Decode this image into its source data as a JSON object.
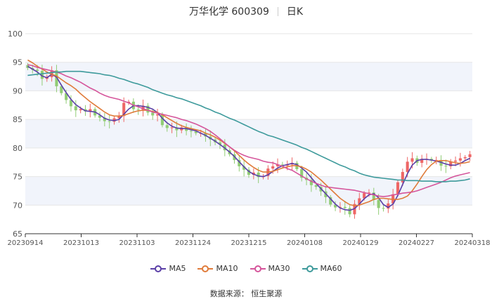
{
  "header": {
    "title": "万华化学 600309",
    "period": "日K"
  },
  "source_text": "数据来源： 恒生聚源",
  "colors": {
    "up": "#ee6666",
    "down": "#91cc75",
    "band": "#f1f4fb",
    "grid": "#e6e6e6",
    "axis": "#333333",
    "text": "#555555"
  },
  "chart_data": {
    "type": "candlestick",
    "ylim": [
      65,
      100
    ],
    "yticks": [
      65,
      70,
      75,
      80,
      85,
      90,
      95,
      100
    ],
    "grid": true,
    "legend_position": "bottom",
    "x_tick_labels": [
      "20230914",
      "20231013",
      "20231103",
      "20231124",
      "20231215",
      "20240108",
      "20240129",
      "20240227",
      "20240318"
    ],
    "series": [
      {
        "name": "MA5",
        "color": "#5b3fa7",
        "values": [
          94.3,
          93.8,
          93.3,
          92.6,
          92.3,
          92.9,
          92.4,
          91.0,
          89.7,
          88.5,
          87.6,
          87.0,
          86.5,
          86.4,
          86.3,
          85.8,
          85.2,
          84.9,
          84.8,
          85.0,
          85.9,
          86.8,
          87.4,
          87.4,
          87.3,
          87.1,
          86.8,
          86.2,
          85.2,
          84.4,
          83.8,
          83.5,
          83.4,
          83.4,
          83.2,
          83.0,
          82.6,
          82.2,
          81.7,
          81.2,
          80.6,
          80.0,
          79.3,
          78.5,
          77.6,
          76.7,
          75.9,
          75.4,
          75.1,
          75.0,
          75.3,
          75.9,
          76.5,
          76.9,
          77.1,
          77.3,
          77.1,
          76.5,
          75.8,
          74.8,
          73.8,
          72.9,
          72.0,
          71.1,
          70.2,
          69.5,
          69.2,
          69.1,
          69.4,
          70.2,
          71.1,
          71.8,
          72.0,
          71.3,
          70.1,
          69.6,
          70.2,
          71.7,
          73.6,
          75.5,
          77.0,
          77.8,
          78.0,
          78.0,
          77.9,
          77.7,
          77.5,
          77.2,
          77.0,
          77.0,
          77.3,
          77.8,
          78.2
        ]
      },
      {
        "name": "MA10",
        "color": "#e07b3a",
        "values": [
          95.4,
          94.9,
          94.3,
          93.8,
          93.3,
          92.9,
          92.6,
          92.0,
          91.4,
          90.9,
          90.3,
          89.5,
          88.8,
          88.1,
          87.5,
          86.9,
          86.3,
          85.8,
          85.6,
          85.6,
          85.7,
          86.0,
          86.3,
          86.5,
          86.6,
          86.6,
          86.4,
          86.2,
          85.8,
          85.3,
          84.8,
          84.3,
          83.9,
          83.6,
          83.4,
          83.2,
          83.0,
          82.6,
          82.3,
          81.9,
          81.4,
          80.8,
          80.2,
          79.5,
          78.7,
          77.9,
          77.2,
          76.6,
          76.1,
          75.8,
          75.8,
          75.9,
          76.2,
          76.5,
          76.7,
          76.9,
          76.9,
          76.7,
          76.3,
          75.8,
          75.1,
          74.4,
          73.6,
          72.8,
          72.0,
          71.2,
          70.6,
          70.1,
          69.9,
          70.0,
          70.3,
          70.6,
          71.0,
          71.2,
          71.2,
          71.1,
          71.0,
          71.0,
          71.2,
          71.6,
          72.5,
          73.7,
          75.0,
          76.2,
          77.1,
          77.7,
          77.8,
          77.8,
          77.6,
          77.4,
          77.3,
          77.4,
          77.6
        ]
      },
      {
        "name": "MA30",
        "color": "#d5559b",
        "values": [
          94.6,
          94.4,
          94.1,
          93.9,
          93.7,
          93.5,
          93.3,
          93.0,
          92.6,
          92.3,
          91.9,
          91.5,
          91.0,
          90.5,
          90.1,
          89.6,
          89.2,
          88.9,
          88.7,
          88.5,
          88.2,
          87.9,
          87.5,
          87.2,
          86.9,
          86.6,
          86.3,
          86.1,
          85.9,
          85.7,
          85.5,
          85.3,
          85.0,
          84.8,
          84.5,
          84.2,
          83.8,
          83.4,
          82.9,
          82.3,
          81.6,
          80.9,
          80.2,
          79.6,
          79.1,
          78.7,
          78.4,
          78.2,
          78.0,
          77.7,
          77.5,
          77.4,
          77.1,
          76.8,
          76.4,
          76.1,
          75.6,
          75.1,
          74.6,
          74.2,
          73.8,
          73.5,
          73.2,
          73.1,
          73.0,
          72.9,
          72.8,
          72.7,
          72.6,
          72.4,
          72.2,
          72.0,
          71.8,
          71.6,
          71.5,
          71.6,
          71.8,
          71.9,
          72.1,
          72.2,
          72.3,
          72.5,
          72.8,
          73.1,
          73.4,
          73.7,
          74.0,
          74.4,
          74.8,
          75.1,
          75.3,
          75.5,
          75.7
        ]
      },
      {
        "name": "MA60",
        "color": "#3d9a9b",
        "values": [
          92.7,
          92.8,
          92.9,
          93.0,
          93.1,
          93.2,
          93.3,
          93.3,
          93.4,
          93.4,
          93.4,
          93.4,
          93.3,
          93.2,
          93.1,
          93.0,
          92.8,
          92.7,
          92.5,
          92.2,
          92.0,
          91.7,
          91.4,
          91.2,
          90.9,
          90.6,
          90.2,
          89.9,
          89.6,
          89.3,
          89.1,
          88.8,
          88.6,
          88.3,
          88.0,
          87.7,
          87.4,
          87.0,
          86.7,
          86.3,
          86.0,
          85.6,
          85.2,
          84.9,
          84.5,
          84.1,
          83.7,
          83.3,
          82.9,
          82.6,
          82.2,
          82.0,
          81.7,
          81.4,
          81.1,
          80.8,
          80.5,
          80.1,
          79.8,
          79.4,
          79.0,
          78.6,
          78.2,
          77.8,
          77.4,
          77.0,
          76.7,
          76.3,
          76.0,
          75.6,
          75.3,
          75.1,
          74.9,
          74.8,
          74.7,
          74.6,
          74.5,
          74.4,
          74.4,
          74.3,
          74.3,
          74.3,
          74.2,
          74.2,
          74.2,
          74.1,
          74.1,
          74.1,
          74.2,
          74.2,
          74.3,
          74.4,
          74.6
        ]
      }
    ],
    "closes": [
      94.0,
      93.7,
      93.5,
      92.1,
      92.4,
      93.6,
      90.8,
      89.6,
      88.4,
      87.3,
      86.6,
      86.8,
      86.4,
      86.8,
      85.7,
      85.3,
      84.7,
      84.6,
      85.2,
      85.6,
      87.9,
      88.1,
      86.8,
      86.7,
      87.4,
      86.2,
      85.7,
      85.9,
      84.0,
      83.5,
      83.6,
      83.1,
      83.6,
      83.0,
      82.9,
      82.6,
      82.6,
      82.0,
      81.5,
      81.0,
      80.6,
      79.6,
      78.9,
      77.9,
      76.8,
      76.2,
      75.3,
      75.7,
      74.9,
      75.1,
      76.4,
      76.8,
      77.1,
      76.9,
      77.1,
      77.4,
      76.3,
      74.8,
      74.4,
      73.5,
      73.2,
      72.4,
      71.4,
      70.1,
      69.6,
      69.7,
      69.5,
      68.4,
      70.2,
      71.2,
      72.1,
      72.2,
      70.9,
      69.5,
      69.4,
      70.3,
      71.9,
      74.0,
      75.8,
      77.6,
      78.2,
      77.4,
      78.1,
      78.1,
      77.8,
      77.9,
      76.9,
      76.8,
      77.6,
      77.8,
      78.2,
      78.4,
      78.9
    ]
  }
}
